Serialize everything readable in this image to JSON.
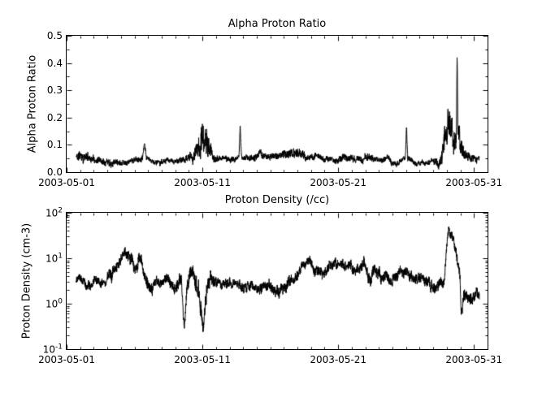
{
  "page": {
    "background": "#ffffff",
    "text_color": "#000000"
  },
  "chart_data": [
    {
      "type": "line",
      "title": "Alpha Proton Ratio",
      "ylabel": "Alpha Proton Ratio",
      "xlabel": "",
      "yscale": "linear",
      "ylim": [
        0.0,
        0.5
      ],
      "xlim_days": [
        1,
        32
      ],
      "x_unit": "day of May 2003",
      "x_tick_days": [
        1,
        11,
        21,
        31
      ],
      "x_tick_labels": [
        "2003-05-01",
        "2003-05-11",
        "2003-05-21",
        "2003-05-31"
      ],
      "y_tick_values": [
        0.0,
        0.1,
        0.2,
        0.3,
        0.4,
        0.5
      ],
      "y_tick_labels": [
        "0.0",
        "0.1",
        "0.2",
        "0.3",
        "0.4",
        "0.5"
      ],
      "legend": "none",
      "grid": false,
      "line_color": "#000000",
      "seed": 11,
      "series": [
        {
          "name": "alpha-proton-ratio",
          "description": "noisy 1-min solar wind alpha/proton ratio; control points are [day, value, jitter]",
          "control_points": [
            [
              1.7,
              0.055,
              0.015
            ],
            [
              2.0,
              0.06,
              0.018
            ],
            [
              2.5,
              0.055,
              0.015
            ],
            [
              3.0,
              0.05,
              0.012
            ],
            [
              3.6,
              0.045,
              0.011
            ],
            [
              4.2,
              0.05,
              0.014
            ],
            [
              4.8,
              0.045,
              0.012
            ],
            [
              5.4,
              0.04,
              0.01
            ],
            [
              6.0,
              0.042,
              0.01
            ],
            [
              6.6,
              0.048,
              0.01
            ],
            [
              6.72,
              0.1,
              0.008
            ],
            [
              6.85,
              0.05,
              0.01
            ],
            [
              7.3,
              0.035,
              0.008
            ],
            [
              8.0,
              0.04,
              0.01
            ],
            [
              8.8,
              0.036,
              0.008
            ],
            [
              9.4,
              0.04,
              0.01
            ],
            [
              9.9,
              0.048,
              0.012
            ],
            [
              10.35,
              0.06,
              0.02
            ],
            [
              10.7,
              0.1,
              0.04
            ],
            [
              11.0,
              0.13,
              0.05
            ],
            [
              11.25,
              0.12,
              0.055
            ],
            [
              11.5,
              0.085,
              0.035
            ],
            [
              11.8,
              0.05,
              0.015
            ],
            [
              12.3,
              0.045,
              0.01
            ],
            [
              13.0,
              0.05,
              0.012
            ],
            [
              13.7,
              0.05,
              0.01
            ],
            [
              13.78,
              0.165,
              0.006
            ],
            [
              13.88,
              0.05,
              0.01
            ],
            [
              14.5,
              0.055,
              0.012
            ],
            [
              15.5,
              0.06,
              0.014
            ],
            [
              16.3,
              0.055,
              0.012
            ],
            [
              17.0,
              0.06,
              0.015
            ],
            [
              17.7,
              0.078,
              0.018
            ],
            [
              18.2,
              0.07,
              0.018
            ],
            [
              18.8,
              0.055,
              0.012
            ],
            [
              19.5,
              0.05,
              0.01
            ],
            [
              20.3,
              0.045,
              0.01
            ],
            [
              21.0,
              0.05,
              0.012
            ],
            [
              21.5,
              0.058,
              0.014
            ],
            [
              22.0,
              0.046,
              0.012
            ],
            [
              22.7,
              0.05,
              0.014
            ],
            [
              23.3,
              0.045,
              0.012
            ],
            [
              24.0,
              0.04,
              0.01
            ],
            [
              24.7,
              0.045,
              0.012
            ],
            [
              25.4,
              0.04,
              0.01
            ],
            [
              25.95,
              0.045,
              0.008
            ],
            [
              26.03,
              0.16,
              0.006
            ],
            [
              26.12,
              0.05,
              0.01
            ],
            [
              26.7,
              0.035,
              0.008
            ],
            [
              27.3,
              0.03,
              0.008
            ],
            [
              28.0,
              0.035,
              0.01
            ],
            [
              28.5,
              0.05,
              0.02
            ],
            [
              28.8,
              0.1,
              0.045
            ],
            [
              29.1,
              0.13,
              0.055
            ],
            [
              29.35,
              0.16,
              0.05
            ],
            [
              29.55,
              0.12,
              0.04
            ],
            [
              29.7,
              0.13,
              0.035
            ],
            [
              29.76,
              0.44,
              0.015
            ],
            [
              29.82,
              0.13,
              0.035
            ],
            [
              30.0,
              0.1,
              0.04
            ],
            [
              30.3,
              0.06,
              0.02
            ],
            [
              30.7,
              0.05,
              0.014
            ],
            [
              31.0,
              0.045,
              0.012
            ],
            [
              31.4,
              0.05,
              0.014
            ]
          ]
        }
      ]
    },
    {
      "type": "line",
      "title": "Proton Density (/cc)",
      "ylabel": "Proton Density (cm-3)",
      "xlabel": "",
      "yscale": "log",
      "ylim": [
        0.1,
        100
      ],
      "xlim_days": [
        1,
        32
      ],
      "x_unit": "day of May 2003",
      "x_tick_days": [
        1,
        11,
        21,
        31
      ],
      "x_tick_labels": [
        "2003-05-01",
        "2003-05-11",
        "2003-05-21",
        "2003-05-31"
      ],
      "y_tick_exponents": [
        -1,
        0,
        1,
        2
      ],
      "y_tick_labels_sup": [
        {
          "base": "10",
          "exp": "-1"
        },
        {
          "base": "10",
          "exp": "0"
        },
        {
          "base": "10",
          "exp": "1"
        },
        {
          "base": "10",
          "exp": "2"
        }
      ],
      "legend": "none",
      "grid": false,
      "line_color": "#000000",
      "seed": 23,
      "series": [
        {
          "name": "proton-density",
          "description": "noisy 1-min solar wind proton density; control points are [day, value_cm3, jitter_log10]",
          "control_points": [
            [
              1.7,
              3.5,
              0.08
            ],
            [
              2.2,
              3.0,
              0.1
            ],
            [
              2.8,
              2.5,
              0.1
            ],
            [
              3.3,
              3.5,
              0.1
            ],
            [
              3.8,
              3.0,
              0.1
            ],
            [
              4.3,
              4.0,
              0.12
            ],
            [
              4.8,
              8.0,
              0.12
            ],
            [
              5.3,
              15.0,
              0.1
            ],
            [
              5.6,
              12.0,
              0.12
            ],
            [
              6.0,
              6.0,
              0.14
            ],
            [
              6.4,
              9.0,
              0.12
            ],
            [
              6.8,
              4.0,
              0.15
            ],
            [
              7.3,
              2.0,
              0.12
            ],
            [
              7.8,
              3.0,
              0.1
            ],
            [
              8.4,
              3.5,
              0.1
            ],
            [
              9.0,
              2.5,
              0.12
            ],
            [
              9.45,
              4.0,
              0.14
            ],
            [
              9.65,
              0.45,
              0.14
            ],
            [
              9.85,
              2.2,
              0.18
            ],
            [
              10.2,
              5.0,
              0.14
            ],
            [
              10.5,
              3.0,
              0.18
            ],
            [
              10.85,
              1.2,
              0.22
            ],
            [
              11.05,
              0.4,
              0.1
            ],
            [
              11.3,
              2.0,
              0.22
            ],
            [
              11.6,
              5.0,
              0.12
            ],
            [
              11.9,
              3.0,
              0.12
            ],
            [
              12.4,
              2.8,
              0.1
            ],
            [
              13.0,
              3.2,
              0.1
            ],
            [
              13.6,
              2.8,
              0.1
            ],
            [
              14.2,
              2.2,
              0.12
            ],
            [
              14.8,
              2.6,
              0.1
            ],
            [
              15.4,
              2.2,
              0.12
            ],
            [
              16.0,
              2.5,
              0.12
            ],
            [
              16.6,
              2.0,
              0.12
            ],
            [
              17.2,
              2.4,
              0.12
            ],
            [
              17.8,
              3.0,
              0.12
            ],
            [
              18.3,
              7.0,
              0.1
            ],
            [
              18.8,
              8.0,
              0.1
            ],
            [
              19.3,
              6.0,
              0.12
            ],
            [
              19.9,
              5.0,
              0.12
            ],
            [
              20.5,
              6.5,
              0.1
            ],
            [
              21.1,
              7.5,
              0.1
            ],
            [
              21.7,
              6.0,
              0.12
            ],
            [
              22.3,
              5.0,
              0.12
            ],
            [
              22.9,
              6.5,
              0.12
            ],
            [
              23.4,
              3.0,
              0.14
            ],
            [
              23.7,
              6.0,
              0.12
            ],
            [
              24.2,
              3.5,
              0.12
            ],
            [
              24.8,
              3.0,
              0.12
            ],
            [
              25.4,
              3.5,
              0.12
            ],
            [
              26.0,
              4.5,
              0.12
            ],
            [
              26.6,
              3.5,
              0.12
            ],
            [
              27.2,
              4.0,
              0.12
            ],
            [
              27.8,
              2.5,
              0.12
            ],
            [
              28.4,
              2.0,
              0.12
            ],
            [
              28.8,
              3.0,
              0.12
            ],
            [
              29.0,
              20.0,
              0.1
            ],
            [
              29.15,
              45.0,
              0.08
            ],
            [
              29.5,
              25.0,
              0.1
            ],
            [
              29.8,
              8.0,
              0.14
            ],
            [
              29.95,
              4.0,
              0.16
            ],
            [
              30.05,
              0.45,
              0.12
            ],
            [
              30.2,
              1.2,
              0.18
            ],
            [
              30.5,
              1.8,
              0.14
            ],
            [
              30.9,
              1.2,
              0.14
            ],
            [
              31.2,
              1.8,
              0.12
            ],
            [
              31.4,
              1.5,
              0.1
            ]
          ]
        }
      ]
    }
  ]
}
